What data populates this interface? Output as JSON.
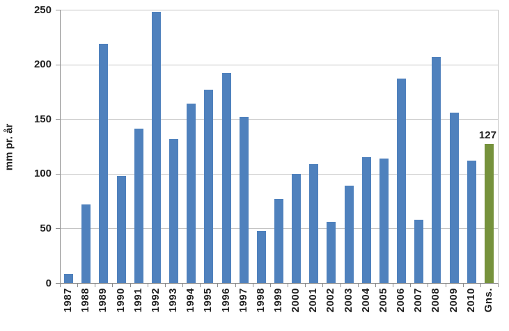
{
  "chart_data": {
    "type": "bar",
    "title": "",
    "xlabel": "",
    "ylabel": "mm pr. år",
    "categories": [
      "1987",
      "1988",
      "1989",
      "1990",
      "1991",
      "1992",
      "1993",
      "1994",
      "1995",
      "1996",
      "1997",
      "1998",
      "1999",
      "2000",
      "2001",
      "2002",
      "2003",
      "2004",
      "2005",
      "2006",
      "2007",
      "2008",
      "2009",
      "2010",
      "Gns."
    ],
    "values": [
      8,
      72,
      219,
      98,
      141,
      248,
      132,
      164,
      177,
      192,
      152,
      48,
      77,
      100,
      109,
      56,
      89,
      115,
      114,
      187,
      58,
      207,
      156,
      112,
      127
    ],
    "ylim": [
      0,
      250
    ],
    "y_ticks": [
      0,
      50,
      100,
      150,
      200,
      250
    ],
    "grid": "horizontal",
    "legend": "none",
    "bar_color": "#4F81BD",
    "highlight_bar": {
      "category": "Gns.",
      "color": "#76923C",
      "data_label": "127"
    },
    "gridline_color": "#C3C3C3",
    "axis_color": "#8C8C8C",
    "text_color": "#1F1F1F"
  }
}
